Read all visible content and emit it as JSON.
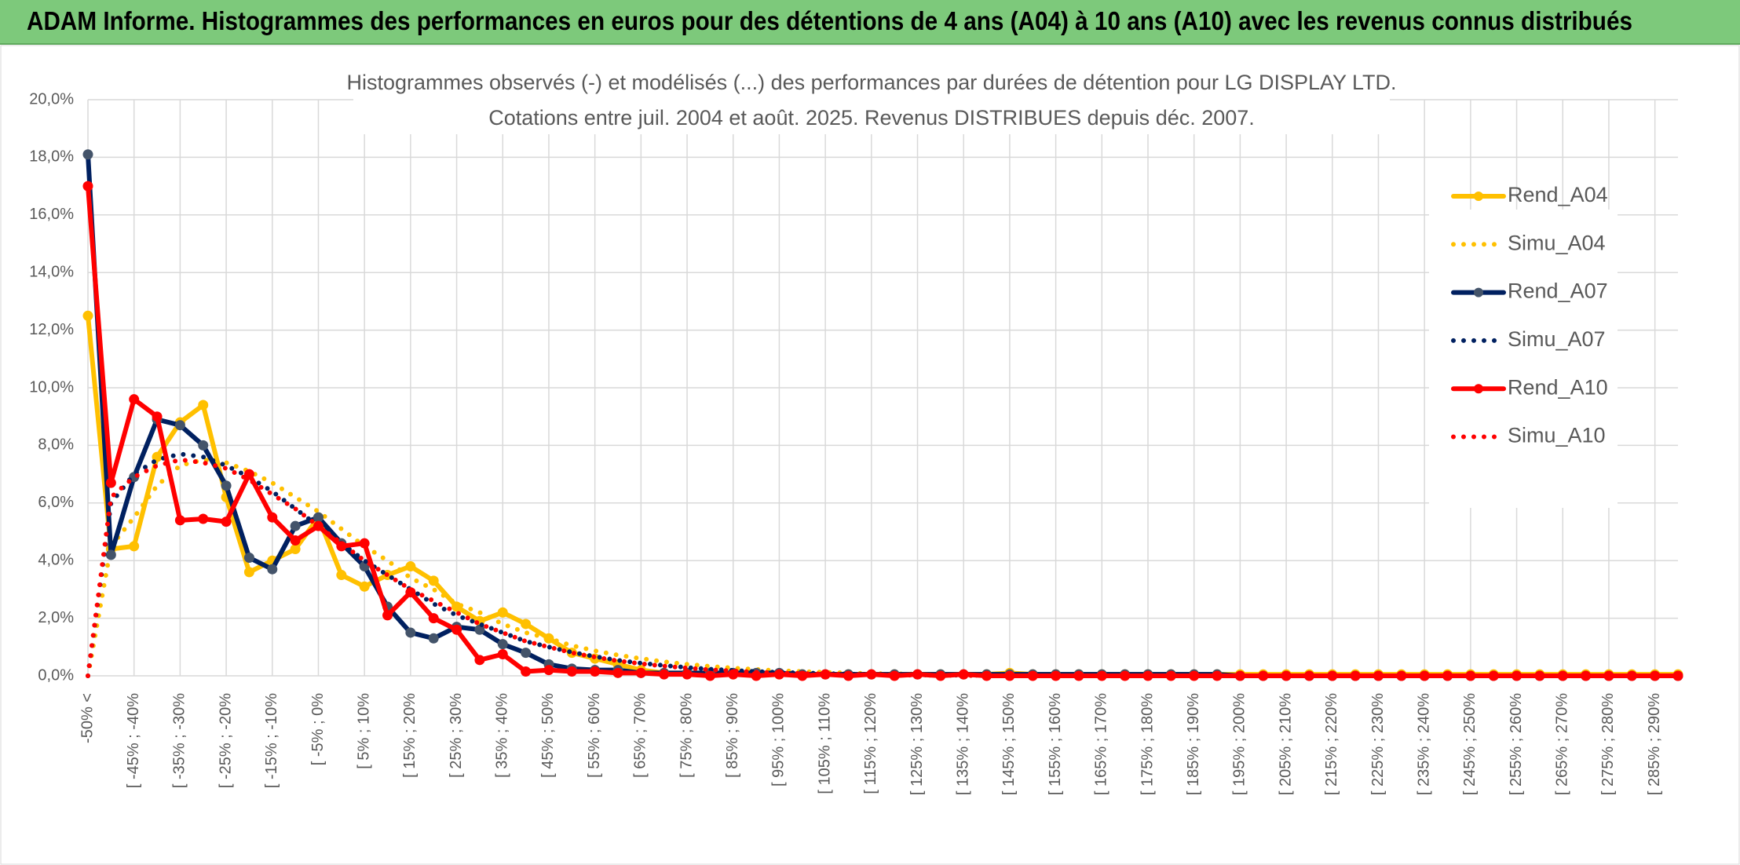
{
  "header": "ADAM Informe. Histogrammes des performances en euros pour des détentions de 4 ans (A04) à 10 ans (A10) avec les revenus connus distribués",
  "chart_data": {
    "type": "line",
    "title": "Histogrammes observés (-) et modélisés (...) des performances par durées de détention pour LG DISPLAY LTD.",
    "subtitle": "Cotations entre juil. 2004 et août. 2025. Revenus DISTRIBUES depuis déc. 2007.",
    "categories": [
      "-50% <",
      null,
      "[ -45% ; -40%",
      null,
      "[ -35% ; -30%",
      null,
      "[ -25% ; -20%",
      null,
      "[ -15% ; -10%",
      null,
      "[ -5% ; 0%",
      null,
      "[ 5% ; 10%",
      null,
      "[ 15% ; 20%",
      null,
      "[ 25% ; 30%",
      null,
      "[ 35% ; 40%",
      null,
      "[ 45% ; 50%",
      null,
      "[ 55% ; 60%",
      null,
      "[ 65% ; 70%",
      null,
      "[ 75% ; 80%",
      null,
      "[ 85% ; 90%",
      null,
      "[ 95% ; 100%",
      null,
      "[ 105% ; 110%",
      null,
      "[ 115% ; 120%",
      null,
      "[ 125% ; 130%",
      null,
      "[ 135% ; 140%",
      null,
      "[ 145% ; 150%",
      null,
      "[ 155% ; 160%",
      null,
      "[ 165% ; 170%",
      null,
      "[ 175% ; 180%",
      null,
      "[ 185% ; 190%",
      null,
      "[ 195% ; 200%",
      null,
      "[ 205% ; 210%",
      null,
      "[ 215% ; 220%",
      null,
      "[ 225% ; 230%",
      null,
      "[ 235% ; 240%",
      null,
      "[ 245% ; 250%",
      null,
      "[ 255% ; 260%",
      null,
      "[ 265% ; 270%",
      null,
      "[ 275% ; 280%",
      null,
      "[ 285% ; 290%",
      null
    ],
    "ylim": [
      0,
      20
    ],
    "yticks": [
      {
        "value": 0,
        "label": "0,0%"
      },
      {
        "value": 2,
        "label": "2,0%"
      },
      {
        "value": 4,
        "label": "4,0%"
      },
      {
        "value": 6,
        "label": "6,0%"
      },
      {
        "value": 8,
        "label": "8,0%"
      },
      {
        "value": 10,
        "label": "10,0%"
      },
      {
        "value": 12,
        "label": "12,0%"
      },
      {
        "value": 14,
        "label": "14,0%"
      },
      {
        "value": 16,
        "label": "16,0%"
      },
      {
        "value": 18,
        "label": "18,0%"
      },
      {
        "value": 20,
        "label": "20,0%"
      }
    ],
    "grid": true,
    "legend": "right",
    "series": [
      {
        "name": "Rend_A04",
        "color": "#ffc000",
        "style": "solid",
        "marker": true,
        "marker_color": "#ffc000",
        "values": [
          12.5,
          4.4,
          4.5,
          7.6,
          8.8,
          9.4,
          6.2,
          3.6,
          4.0,
          4.4,
          5.5,
          3.5,
          3.1,
          3.5,
          3.8,
          3.3,
          2.4,
          1.9,
          2.2,
          1.8,
          1.3,
          0.8,
          0.6,
          0.4,
          0.2,
          0.1,
          0.1,
          0.1,
          0.05,
          0.05,
          0.05,
          0.05,
          0.05,
          0.05,
          0.05,
          0.05,
          0.05,
          0.05,
          0.05,
          0.05,
          0.1,
          0.05,
          0.05,
          0.05,
          0.05,
          0.05,
          0.05,
          0.05,
          0.05,
          0.05,
          0.05,
          0.05,
          0.05,
          0.05,
          0.05,
          0.05,
          0.05,
          0.05,
          0.05,
          0.05,
          0.05,
          0.05,
          0.05,
          0.05,
          0.05,
          0.05,
          0.05,
          0.05,
          0.05,
          0.05
        ]
      },
      {
        "name": "Simu_A04",
        "color": "#ffc000",
        "style": "dotted",
        "marker": false,
        "values": [
          0,
          4.5,
          5.5,
          6.6,
          7.3,
          7.5,
          7.4,
          7.1,
          6.7,
          6.2,
          5.7,
          5.1,
          4.5,
          4.0,
          3.4,
          3.0,
          2.5,
          2.2,
          1.8,
          1.5,
          1.3,
          1.05,
          0.87,
          0.72,
          0.6,
          0.49,
          0.4,
          0.33,
          0.27,
          0.22,
          0.18,
          0.15,
          0.12,
          0.1,
          0.08,
          0.07,
          0.06,
          0.05,
          0.04,
          0.03,
          0.03,
          0.02,
          0.02,
          0.01,
          0.01,
          0,
          0,
          0,
          0,
          0,
          0,
          0,
          0,
          0,
          0,
          0,
          0,
          0,
          0,
          0,
          0,
          0,
          0,
          0,
          0,
          0,
          0,
          0,
          0,
          0
        ]
      },
      {
        "name": "Rend_A07",
        "color": "#002060",
        "style": "solid",
        "marker": true,
        "marker_color": "#44546a",
        "values": [
          18.1,
          4.2,
          6.9,
          8.9,
          8.7,
          8.0,
          6.6,
          4.1,
          3.7,
          5.2,
          5.5,
          4.6,
          3.8,
          2.4,
          1.5,
          1.3,
          1.7,
          1.6,
          1.1,
          0.8,
          0.4,
          0.25,
          0.2,
          0.2,
          0.1,
          0.1,
          0.1,
          0.1,
          0.1,
          0.1,
          0.1,
          0.05,
          0.05,
          0.05,
          0.05,
          0.05,
          0.05,
          0.05,
          0.05,
          0.05,
          0.05,
          0.05,
          0.05,
          0.05,
          0.05,
          0.05,
          0.05,
          0.05,
          0.05,
          0.05,
          0,
          0,
          0,
          0,
          0,
          0,
          0,
          0,
          0,
          0,
          0,
          0,
          0,
          0,
          0,
          0,
          0,
          0,
          0,
          0
        ]
      },
      {
        "name": "Simu_A07",
        "color": "#002060",
        "style": "dotted",
        "marker": false,
        "values": [
          0,
          6.0,
          7.0,
          7.5,
          7.7,
          7.6,
          7.3,
          6.9,
          6.4,
          5.8,
          5.2,
          4.6,
          4.0,
          3.5,
          3.0,
          2.5,
          2.1,
          1.8,
          1.5,
          1.2,
          1.0,
          0.82,
          0.67,
          0.54,
          0.44,
          0.36,
          0.29,
          0.23,
          0.19,
          0.15,
          0.12,
          0.1,
          0.08,
          0.06,
          0.05,
          0.04,
          0.03,
          0.03,
          0.02,
          0.02,
          0.01,
          0.01,
          0.01,
          0.01,
          0.01,
          0,
          0,
          0,
          0,
          0,
          0,
          0,
          0,
          0,
          0,
          0,
          0,
          0,
          0,
          0,
          0,
          0,
          0,
          0,
          0,
          0,
          0,
          0,
          0,
          0
        ]
      },
      {
        "name": "Rend_A10",
        "color": "#ff0000",
        "style": "solid",
        "marker": true,
        "marker_color": "#ff0000",
        "values": [
          17.0,
          6.7,
          9.6,
          9.0,
          5.4,
          5.45,
          5.35,
          7.0,
          5.5,
          4.7,
          5.2,
          4.5,
          4.6,
          2.1,
          2.9,
          2.0,
          1.6,
          0.55,
          0.75,
          0.15,
          0.2,
          0.15,
          0.15,
          0.1,
          0.1,
          0.05,
          0.05,
          0,
          0.05,
          0,
          0.05,
          0,
          0.05,
          0,
          0.05,
          0,
          0.05,
          0,
          0.05,
          0,
          0,
          0,
          0,
          0,
          0,
          0,
          0,
          0,
          0,
          0,
          0,
          0,
          0,
          0,
          0,
          0,
          0,
          0,
          0,
          0,
          0,
          0,
          0,
          0,
          0,
          0,
          0,
          0,
          0,
          0
        ]
      },
      {
        "name": "Simu_A10",
        "color": "#ff0000",
        "style": "dotted",
        "marker": false,
        "values": [
          0,
          6.2,
          6.9,
          7.3,
          7.5,
          7.4,
          7.2,
          6.8,
          6.3,
          5.8,
          5.2,
          4.6,
          4.0,
          3.5,
          3.0,
          2.6,
          2.2,
          1.8,
          1.5,
          1.2,
          1.0,
          0.8,
          0.65,
          0.52,
          0.42,
          0.34,
          0.27,
          0.21,
          0.17,
          0.13,
          0.1,
          0.08,
          0.06,
          0.05,
          0.04,
          0.03,
          0.02,
          0.02,
          0.01,
          0.01,
          0,
          0,
          0,
          0,
          0,
          0,
          0,
          0,
          0,
          0,
          0,
          0,
          0,
          0,
          0,
          0,
          0,
          0,
          0,
          0,
          0,
          0,
          0,
          0,
          0,
          0,
          0,
          0,
          0,
          0
        ]
      }
    ]
  }
}
